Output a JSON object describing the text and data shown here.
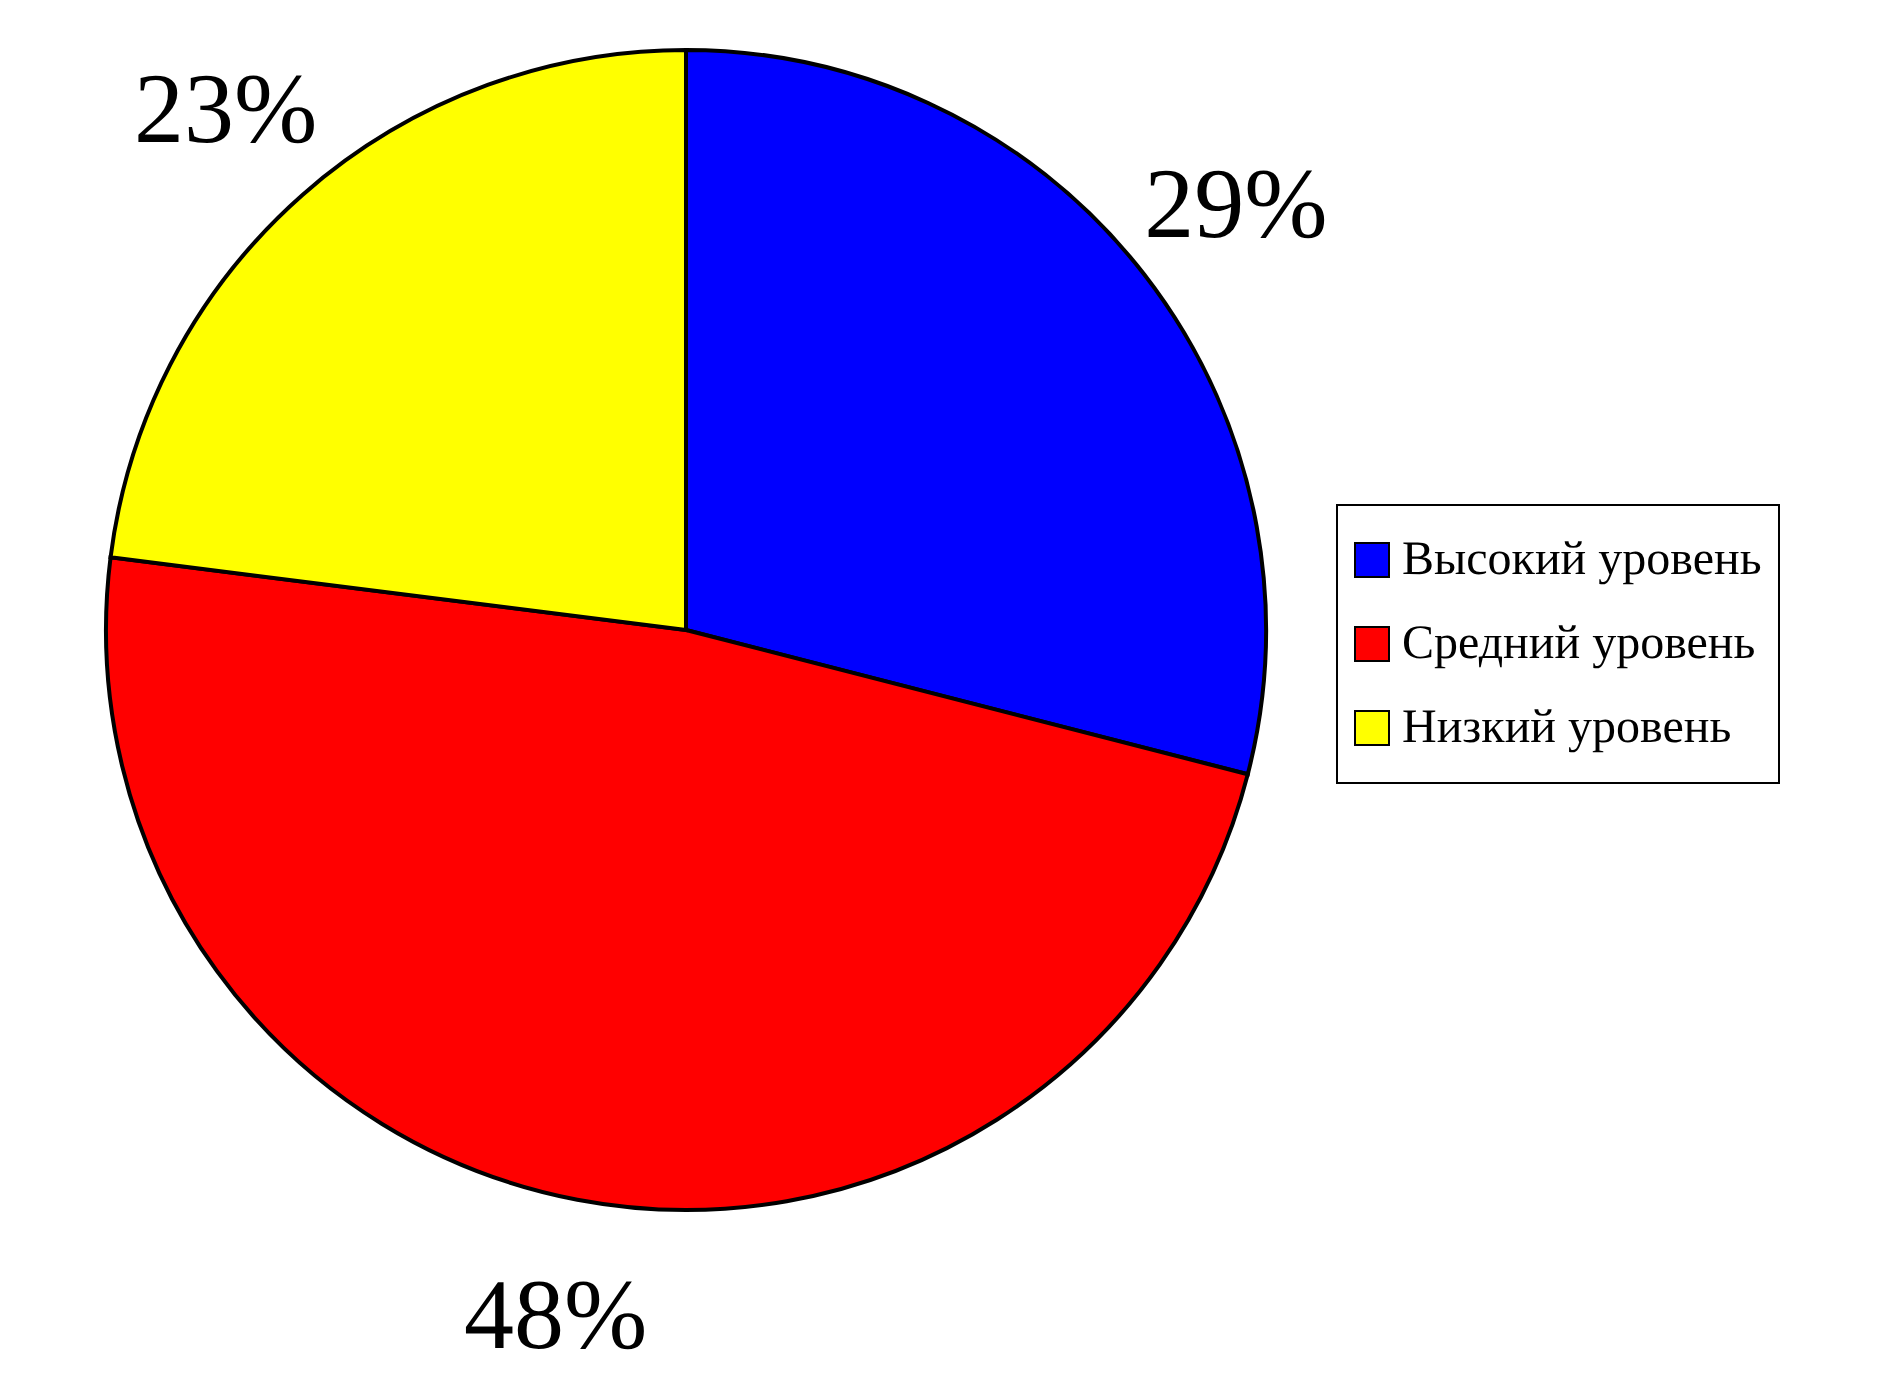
{
  "chart_data": {
    "type": "pie",
    "categories": [
      "Высокий уровень",
      "Средний уровень",
      "Низкий уровень"
    ],
    "values": [
      29,
      48,
      23
    ],
    "colors": [
      "#0000ff",
      "#ff0000",
      "#ffff00"
    ],
    "value_labels": [
      "29%",
      "48%",
      "23%"
    ],
    "legend": "right"
  }
}
